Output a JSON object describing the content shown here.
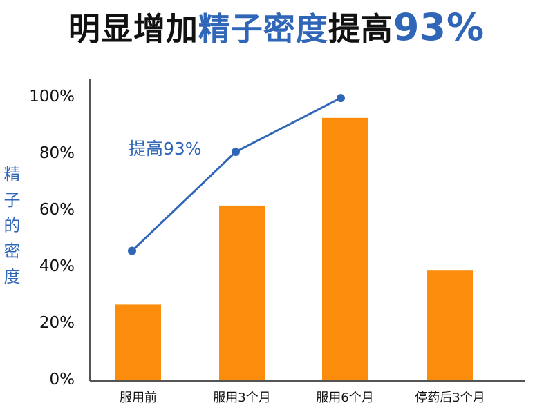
{
  "title": {
    "part1": "明显增加",
    "part2": "精子密度",
    "part3": "提高",
    "part4": "93%"
  },
  "colors": {
    "bar": "#fb8c0c",
    "line": "#2f66b8",
    "title_highlight": "#2f66b8",
    "axis": "#555555"
  },
  "chart_data": {
    "type": "bar",
    "categories": [
      "服用前",
      "服用3个月",
      "服用6个月",
      "停药后3个月"
    ],
    "ylabel": "精子的密度",
    "ylim": [
      0,
      100
    ],
    "yticks": [
      "0%",
      "20%",
      "40%",
      "60%",
      "80%",
      "100%"
    ],
    "grid": false,
    "series": [
      {
        "type": "bar",
        "values": [
          26,
          61,
          92,
          38
        ]
      },
      {
        "type": "line",
        "values": [
          45,
          80,
          99,
          null
        ]
      }
    ],
    "annotations": [
      {
        "text": "提高93%"
      }
    ]
  }
}
